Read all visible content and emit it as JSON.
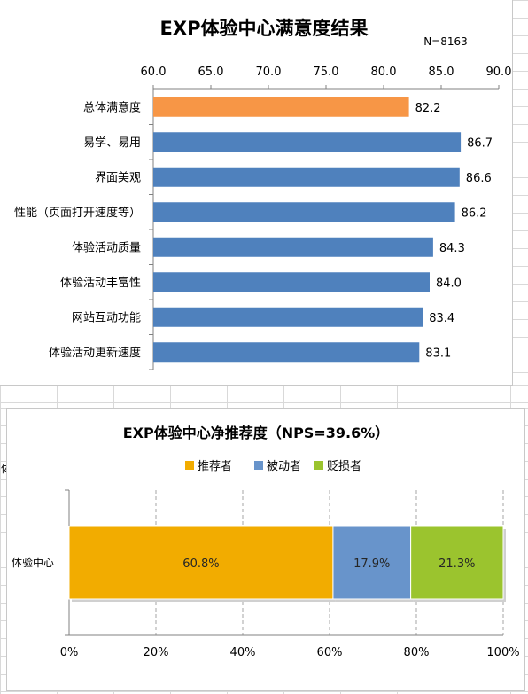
{
  "chart_data": [
    {
      "type": "bar",
      "orientation": "horizontal",
      "title": "EXP体验中心满意度结果",
      "note": "N=8163",
      "categories": [
        "总体满意度",
        "易学、易用",
        "界面美观",
        "性能（页面打开速度等）",
        "体验活动质量",
        "体验活动丰富性",
        "网站互动功能",
        "体验活动更新速度"
      ],
      "values": [
        82.2,
        86.7,
        86.6,
        86.2,
        84.3,
        84.0,
        83.4,
        83.1
      ],
      "value_labels": [
        "82.2",
        "86.7",
        "86.6",
        "86.2",
        "84.3",
        "84.0",
        "83.4",
        "83.1"
      ],
      "xlim": [
        60,
        90
      ],
      "x_ticks": [
        "60.0",
        "65.0",
        "70.0",
        "75.0",
        "80.0",
        "85.0",
        "90.0"
      ],
      "axis_position": "top",
      "grid": false,
      "colors": {
        "highlight": "#F79646",
        "default": "#4F81BD"
      },
      "highlight_index": 0
    },
    {
      "type": "bar",
      "orientation": "horizontal",
      "stacked": "percent",
      "title": "EXP体验中心净推荐度（NPS=39.6%）",
      "categories": [
        "体验中心"
      ],
      "series": [
        {
          "name": "推荐者",
          "values": [
            60.8
          ],
          "label": "60.8%",
          "color": "#F2AC00"
        },
        {
          "name": "被动者",
          "values": [
            17.9
          ],
          "label": "17.9%",
          "color": "#6894CB"
        },
        {
          "name": "贬损者",
          "values": [
            21.3
          ],
          "label": "21.3%",
          "color": "#9BC42E"
        }
      ],
      "xlim": [
        0,
        100
      ],
      "x_ticks": [
        "0%",
        "20%",
        "40%",
        "60%",
        "80%",
        "100%"
      ],
      "legend_position": "top",
      "grid": true
    }
  ],
  "sheet_fragment": "体"
}
